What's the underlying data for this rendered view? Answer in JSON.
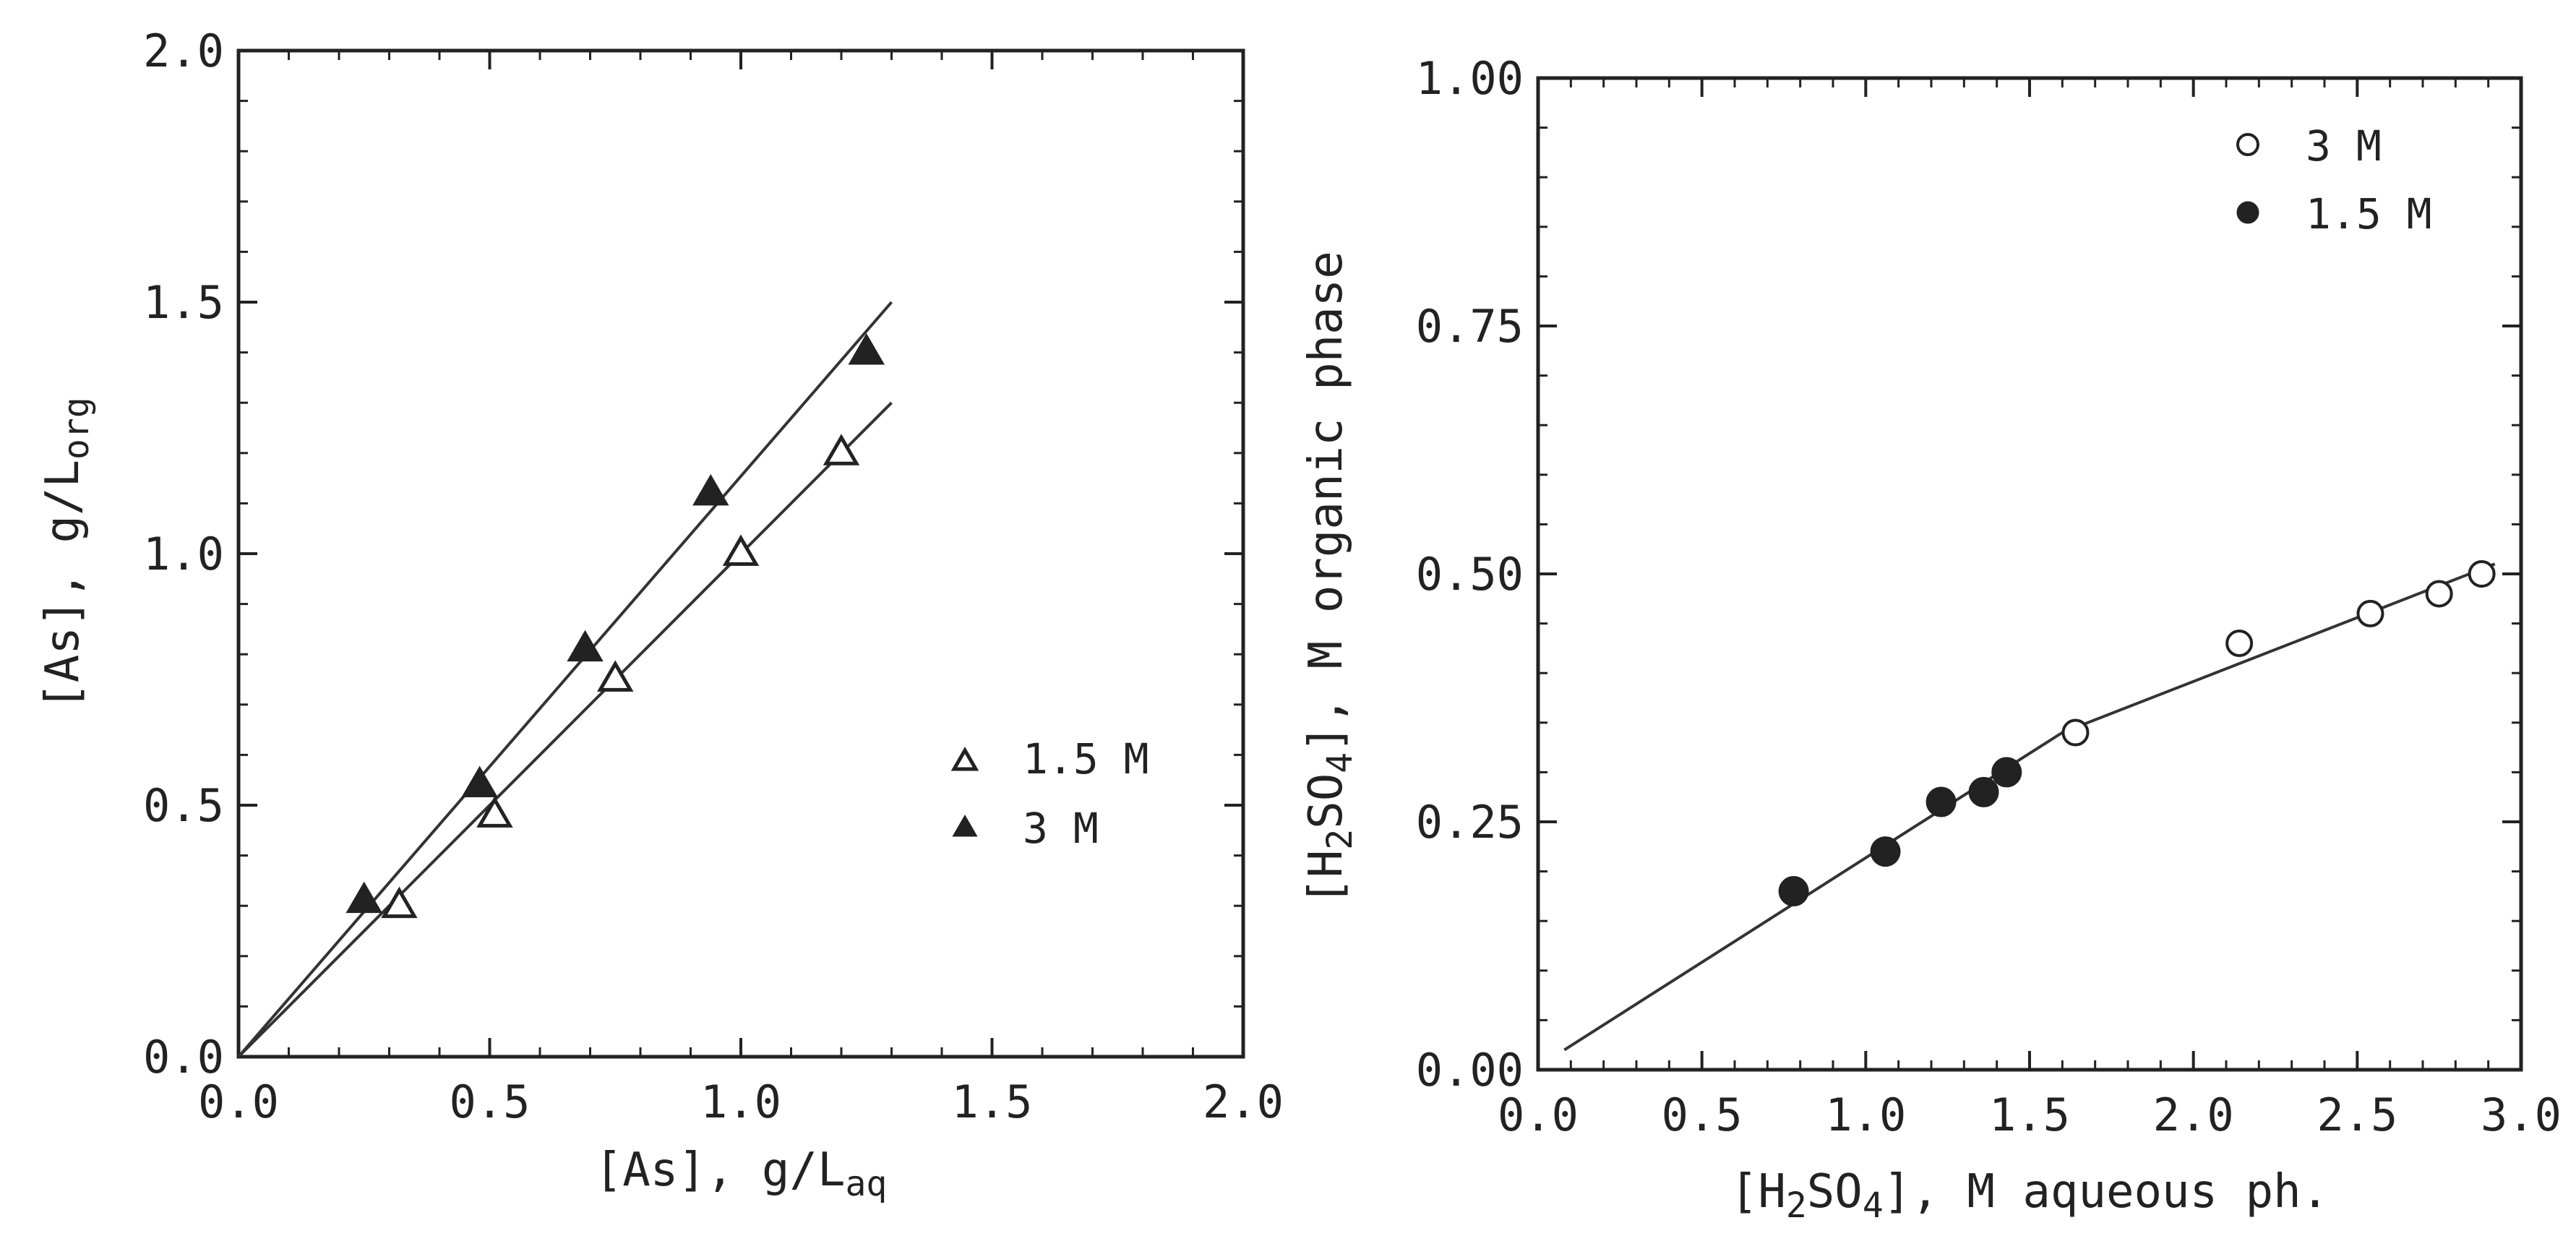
{
  "chart_data": [
    {
      "type": "scatter",
      "xlabel": "[As], g/L",
      "xlabel_sub": "aq",
      "ylabel": "[As], g/L",
      "ylabel_sub": "org",
      "xlim": [
        0.0,
        2.0
      ],
      "ylim": [
        0.0,
        2.0
      ],
      "xticks": [
        "0.0",
        "0.5",
        "1.0",
        "1.5",
        "2.0"
      ],
      "yticks": [
        "0.0",
        "0.5",
        "1.0",
        "1.5",
        "2.0"
      ],
      "grid": false,
      "legend": "right-middle",
      "series": [
        {
          "name": "1.5 M",
          "marker": "open-triangle",
          "x": [
            0.32,
            0.51,
            0.75,
            1.0,
            1.2
          ],
          "y": [
            0.3,
            0.48,
            0.75,
            1.0,
            1.2
          ]
        },
        {
          "name": "3 M",
          "marker": "filled-triangle",
          "x": [
            0.25,
            0.48,
            0.69,
            0.94,
            1.25
          ],
          "y": [
            0.31,
            0.54,
            0.81,
            1.12,
            1.4
          ]
        }
      ],
      "fit_lines": [
        {
          "x": [
            0.0,
            1.3
          ],
          "y": [
            0.0,
            1.3
          ]
        },
        {
          "x": [
            0.0,
            1.3
          ],
          "y": [
            0.0,
            1.5
          ]
        }
      ]
    },
    {
      "type": "scatter",
      "xlabel_parts": [
        "[H",
        "2",
        "SO",
        "4",
        "], M aqueous ph."
      ],
      "ylabel_parts": [
        "[H",
        "2",
        "SO",
        "4",
        "], M organic phase"
      ],
      "xlim": [
        0.0,
        3.0
      ],
      "ylim": [
        0.0,
        1.0
      ],
      "xticks": [
        "0.0",
        "0.5",
        "1.0",
        "1.5",
        "2.0",
        "2.5",
        "3.0"
      ],
      "yticks": [
        "0.00",
        "0.25",
        "0.50",
        "0.75",
        "1.00"
      ],
      "grid": false,
      "legend": "top-right",
      "series": [
        {
          "name": "3 M",
          "marker": "open-circle",
          "x": [
            1.64,
            2.14,
            2.54,
            2.75,
            2.88
          ],
          "y": [
            0.34,
            0.43,
            0.46,
            0.48,
            0.5
          ]
        },
        {
          "name": "1.5 M",
          "marker": "filled-circle",
          "x": [
            0.78,
            1.06,
            1.23,
            1.36,
            1.43
          ],
          "y": [
            0.18,
            0.22,
            0.27,
            0.28,
            0.3
          ]
        }
      ],
      "fit_lines": [
        {
          "x": [
            0.08,
            1.6,
            2.92
          ],
          "y": [
            0.02,
            0.34,
            0.51
          ]
        }
      ]
    }
  ]
}
